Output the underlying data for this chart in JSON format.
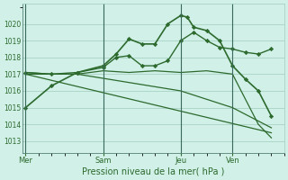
{
  "background_color": "#d0f0e8",
  "grid_color": "#a0ccbc",
  "line_color": "#2d6a2d",
  "xlabel": "Pression niveau de la mer( hPa )",
  "ylim": [
    1012.3,
    1021.2
  ],
  "yticks": [
    1013,
    1014,
    1015,
    1016,
    1017,
    1018,
    1019,
    1020
  ],
  "xtick_labels": [
    "Mer",
    "Sam",
    "Jeu",
    "Ven"
  ],
  "xtick_positions": [
    0,
    24,
    48,
    64
  ],
  "vline_positions": [
    0,
    24,
    48,
    64
  ],
  "xlim": [
    -1,
    80
  ],
  "series": [
    {
      "x": [
        0,
        8,
        16,
        24,
        28,
        32,
        36,
        40,
        44,
        48,
        50,
        52,
        56,
        60,
        64,
        68,
        72,
        76
      ],
      "y": [
        1015.0,
        1016.3,
        1017.1,
        1017.5,
        1018.2,
        1019.1,
        1018.8,
        1018.8,
        1020.0,
        1020.5,
        1020.4,
        1019.8,
        1019.6,
        1019.0,
        1017.5,
        1016.7,
        1016.0,
        1014.5
      ],
      "marker": true,
      "lw": 1.2
    },
    {
      "x": [
        0,
        8,
        16,
        24,
        32,
        40,
        48,
        56,
        64,
        72,
        76
      ],
      "y": [
        1017.1,
        1017.0,
        1017.0,
        1017.2,
        1017.1,
        1017.2,
        1017.1,
        1017.2,
        1017.0,
        1014.0,
        1013.2
      ],
      "marker": false,
      "lw": 0.9
    },
    {
      "x": [
        0,
        8,
        16,
        24,
        28,
        32,
        36,
        40,
        44,
        48,
        52,
        56,
        60,
        64,
        68,
        72,
        76
      ],
      "y": [
        1017.1,
        1017.0,
        1017.1,
        1017.4,
        1018.0,
        1018.1,
        1017.5,
        1017.5,
        1017.8,
        1019.0,
        1019.5,
        1019.0,
        1018.6,
        1018.5,
        1018.3,
        1018.2,
        1018.5
      ],
      "marker": true,
      "lw": 1.0
    },
    {
      "x": [
        0,
        16,
        32,
        48,
        64,
        76
      ],
      "y": [
        1017.0,
        1017.0,
        1016.5,
        1016.0,
        1015.0,
        1013.8
      ],
      "marker": false,
      "lw": 0.9
    },
    {
      "x": [
        0,
        76
      ],
      "y": [
        1017.0,
        1013.5
      ],
      "marker": false,
      "lw": 0.9
    }
  ]
}
